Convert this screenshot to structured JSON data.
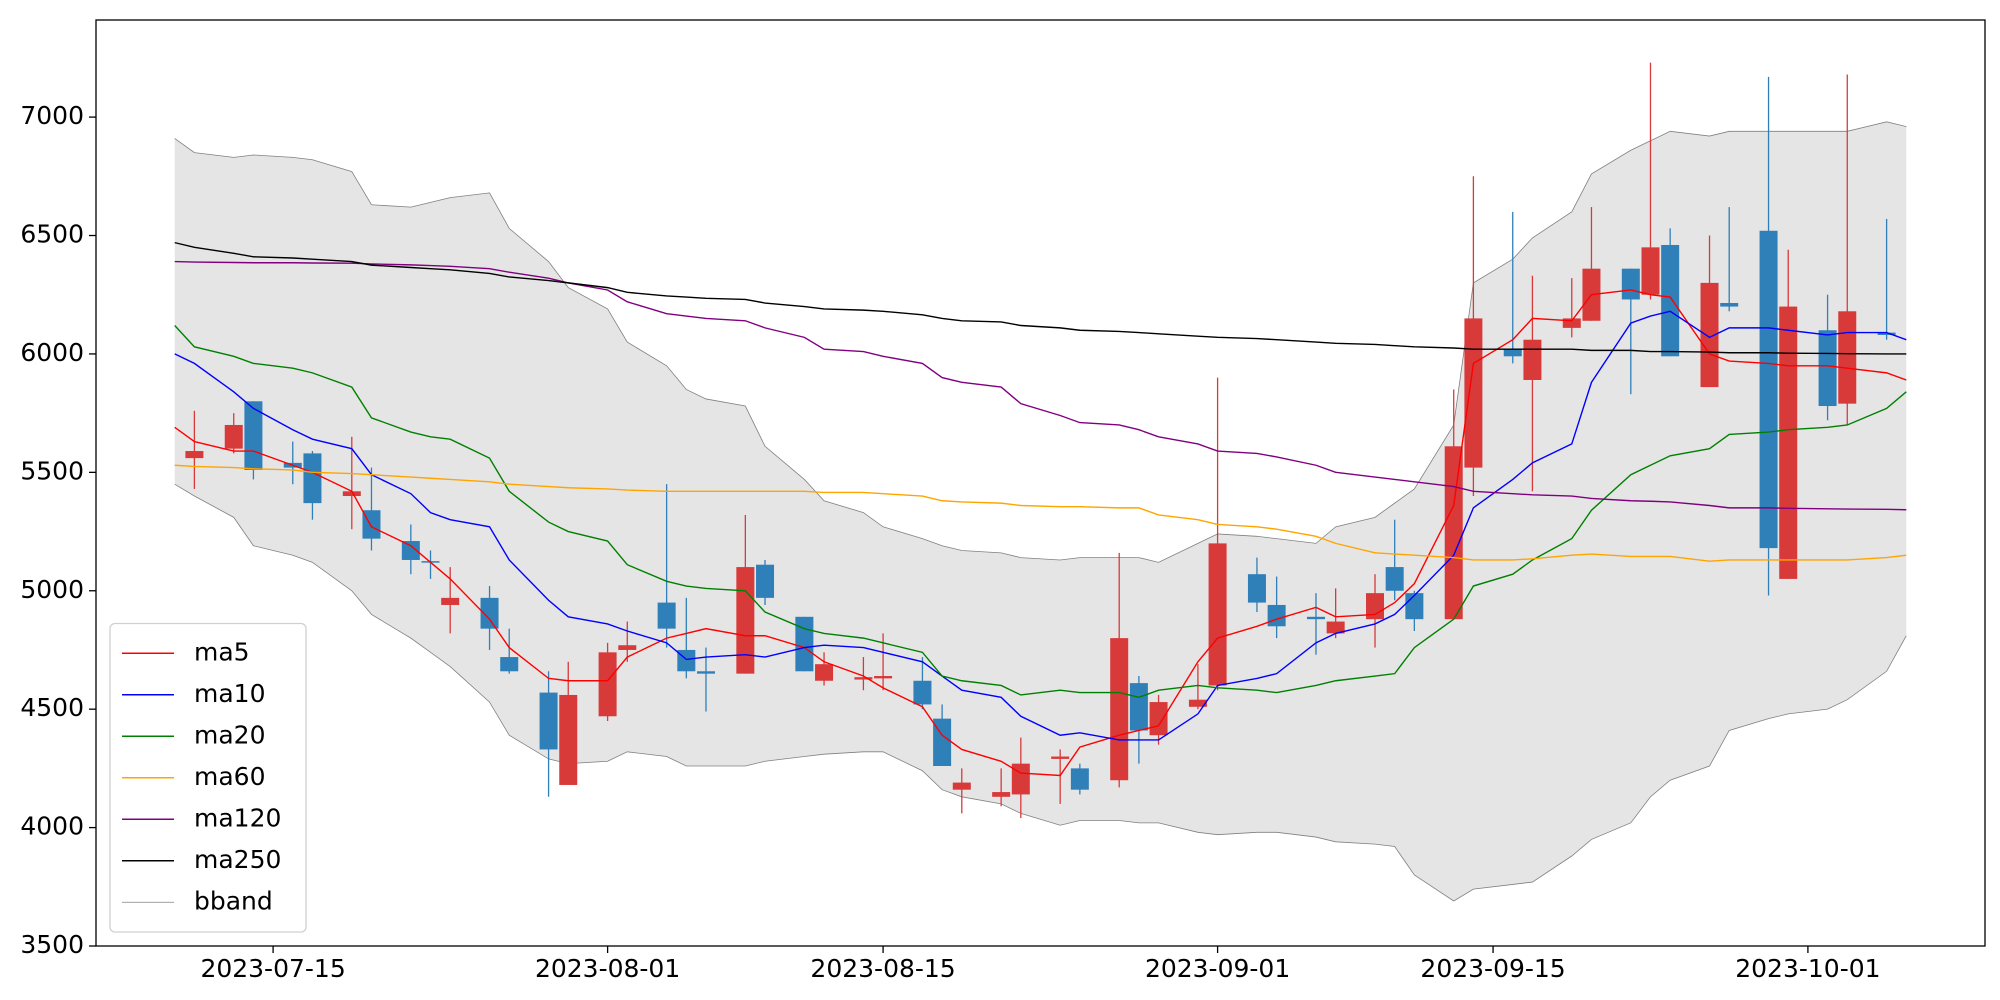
{
  "chart_data": {
    "type": "candlestick",
    "x": [
      "2023-07-10",
      "2023-07-11",
      "2023-07-13",
      "2023-07-14",
      "2023-07-16",
      "2023-07-17",
      "2023-07-19",
      "2023-07-20",
      "2023-07-22",
      "2023-07-23",
      "2023-07-24",
      "2023-07-26",
      "2023-07-27",
      "2023-07-29",
      "2023-07-30",
      "2023-08-01",
      "2023-08-02",
      "2023-08-04",
      "2023-08-05",
      "2023-08-06",
      "2023-08-08",
      "2023-08-09",
      "2023-08-11",
      "2023-08-12",
      "2023-08-14",
      "2023-08-15",
      "2023-08-17",
      "2023-08-18",
      "2023-08-19",
      "2023-08-21",
      "2023-08-22",
      "2023-08-24",
      "2023-08-25",
      "2023-08-27",
      "2023-08-28",
      "2023-08-29",
      "2023-08-31",
      "2023-09-01",
      "2023-09-03",
      "2023-09-04",
      "2023-09-06",
      "2023-09-07",
      "2023-09-09",
      "2023-09-10",
      "2023-09-11",
      "2023-09-13",
      "2023-09-14",
      "2023-09-16",
      "2023-09-17",
      "2023-09-19",
      "2023-09-20",
      "2023-09-22",
      "2023-09-23",
      "2023-09-24",
      "2023-09-26",
      "2023-09-27",
      "2023-09-29",
      "2023-09-30",
      "2023-10-02",
      "2023-10-03",
      "2023-10-05",
      "2023-10-06"
    ],
    "open": [
      null,
      5560,
      5600,
      5800,
      5540,
      5580,
      5400,
      5340,
      5210,
      5125,
      4940,
      4970,
      4720,
      4570,
      4180,
      4470,
      4750,
      4950,
      4750,
      4660,
      4650,
      5110,
      4890,
      4620,
      4625,
      4630,
      4620,
      4460,
      4160,
      4130,
      4140,
      4290,
      4250,
      4200,
      4610,
      4390,
      4510,
      4600,
      5070,
      4940,
      4890,
      4820,
      4880,
      5100,
      4990,
      4880,
      5520,
      6020,
      5890,
      6110,
      6140,
      6360,
      6250,
      6460,
      5860,
      6215,
      6520,
      5050,
      6100,
      5790,
      6090,
      null
    ],
    "high": [
      null,
      5760,
      5750,
      5800,
      5630,
      5590,
      5650,
      5520,
      5280,
      5170,
      5100,
      5020,
      4840,
      4660,
      4700,
      4780,
      4870,
      5450,
      4970,
      4760,
      5320,
      5130,
      4890,
      4740,
      4720,
      4820,
      4720,
      4520,
      4250,
      4250,
      4380,
      4330,
      4270,
      5160,
      4640,
      4560,
      4690,
      5900,
      5140,
      5060,
      4990,
      5010,
      5070,
      5300,
      5000,
      5850,
      6750,
      6600,
      6330,
      6320,
      6620,
      6360,
      7230,
      6530,
      6500,
      6620,
      7170,
      6440,
      6250,
      7180,
      6570,
      null
    ],
    "low": [
      null,
      5430,
      5580,
      5470,
      5450,
      5300,
      5260,
      5170,
      5070,
      5050,
      4820,
      4750,
      4650,
      4130,
      4180,
      4450,
      4700,
      4760,
      4630,
      4490,
      4650,
      4940,
      4660,
      4600,
      4580,
      4580,
      4500,
      4260,
      4060,
      4090,
      4040,
      4100,
      4140,
      4170,
      4270,
      4350,
      4500,
      4580,
      4910,
      4800,
      4730,
      4800,
      4760,
      4960,
      4830,
      4880,
      5400,
      5960,
      5420,
      6070,
      6140,
      5830,
      6230,
      5990,
      5860,
      6180,
      4980,
      5050,
      5720,
      5700,
      6060,
      null
    ],
    "close": [
      null,
      5590,
      5700,
      5510,
      5520,
      5370,
      5420,
      5220,
      5130,
      5120,
      4970,
      4840,
      4660,
      4330,
      4560,
      4740,
      4770,
      4840,
      4660,
      4650,
      5100,
      4970,
      4660,
      4690,
      4635,
      4640,
      4520,
      4260,
      4190,
      4150,
      4270,
      4300,
      4160,
      4800,
      4410,
      4530,
      4540,
      5200,
      4950,
      4850,
      4880,
      4870,
      4990,
      5000,
      4880,
      5610,
      6150,
      5990,
      6060,
      6150,
      6360,
      6230,
      6450,
      5990,
      6300,
      6200,
      5180,
      6200,
      5780,
      6180,
      6080,
      null
    ],
    "up_color": "#d83a3a",
    "down_color": "#2f7fb9",
    "series": [
      {
        "name": "ma5",
        "color": "#ff0000",
        "values": [
          5690,
          5630,
          5590,
          5590,
          5530,
          5500,
          5420,
          5270,
          5190,
          5120,
          5050,
          4880,
          4760,
          4630,
          4620,
          4620,
          4720,
          4800,
          4820,
          4840,
          4810,
          4810,
          4760,
          4700,
          4640,
          4590,
          4510,
          4390,
          4330,
          4280,
          4230,
          4220,
          4340,
          4390,
          4410,
          4430,
          4700,
          4800,
          4850,
          4880,
          4930,
          4890,
          4900,
          4950,
          5030,
          5360,
          5960,
          6060,
          6150,
          6140,
          6250,
          6270,
          6250,
          6240,
          6000,
          5970,
          5960,
          5950,
          5950,
          5940,
          5920,
          5890
        ]
      },
      {
        "name": "ma10",
        "color": "#0000ff",
        "values": [
          6000,
          5960,
          5840,
          5770,
          5680,
          5640,
          5600,
          5490,
          5410,
          5330,
          5300,
          5270,
          5130,
          4960,
          4890,
          4860,
          4830,
          4780,
          4710,
          4720,
          4730,
          4720,
          4760,
          4770,
          4760,
          4740,
          4700,
          4640,
          4580,
          4550,
          4470,
          4390,
          4400,
          4370,
          4370,
          4370,
          4480,
          4600,
          4630,
          4650,
          4780,
          4820,
          4860,
          4900,
          4980,
          5150,
          5350,
          5470,
          5540,
          5620,
          5880,
          6130,
          6160,
          6180,
          6070,
          6110,
          6110,
          6100,
          6080,
          6090,
          6090,
          6060
        ]
      },
      {
        "name": "ma20",
        "color": "#008000",
        "values": [
          6120,
          6030,
          5990,
          5960,
          5940,
          5920,
          5860,
          5730,
          5670,
          5650,
          5640,
          5560,
          5420,
          5290,
          5250,
          5210,
          5110,
          5040,
          5020,
          5010,
          5000,
          4910,
          4840,
          4820,
          4800,
          4780,
          4740,
          4640,
          4620,
          4600,
          4560,
          4580,
          4570,
          4570,
          4550,
          4580,
          4600,
          4590,
          4580,
          4570,
          4600,
          4620,
          4640,
          4650,
          4760,
          4880,
          5020,
          5070,
          5130,
          5220,
          5340,
          5490,
          5530,
          5570,
          5600,
          5660,
          5670,
          5680,
          5690,
          5700,
          5770,
          5840
        ]
      },
      {
        "name": "ma60",
        "color": "#ffa500",
        "values": [
          5530,
          5525,
          5520,
          5515,
          5510,
          5500,
          5495,
          5490,
          5480,
          5475,
          5470,
          5460,
          5450,
          5440,
          5435,
          5430,
          5425,
          5420,
          5420,
          5420,
          5420,
          5420,
          5420,
          5415,
          5415,
          5410,
          5400,
          5380,
          5375,
          5370,
          5360,
          5355,
          5355,
          5350,
          5350,
          5320,
          5300,
          5280,
          5270,
          5260,
          5230,
          5200,
          5160,
          5155,
          5150,
          5140,
          5130,
          5130,
          5135,
          5150,
          5155,
          5145,
          5145,
          5145,
          5125,
          5130,
          5130,
          5130,
          5130,
          5130,
          5140,
          5150
        ]
      },
      {
        "name": "ma120",
        "color": "#800080",
        "values": [
          6390,
          6388,
          6386,
          6385,
          6385,
          6384,
          6383,
          6380,
          6376,
          6373,
          6370,
          6360,
          6345,
          6320,
          6300,
          6270,
          6220,
          6170,
          6160,
          6150,
          6140,
          6110,
          6070,
          6020,
          6010,
          5990,
          5960,
          5900,
          5880,
          5860,
          5790,
          5740,
          5710,
          5700,
          5680,
          5650,
          5620,
          5590,
          5580,
          5565,
          5530,
          5500,
          5480,
          5470,
          5460,
          5440,
          5420,
          5410,
          5405,
          5400,
          5390,
          5380,
          5378,
          5375,
          5360,
          5350,
          5350,
          5348,
          5346,
          5345,
          5344,
          5342
        ]
      },
      {
        "name": "ma250",
        "color": "#000000",
        "values": [
          6470,
          6450,
          6425,
          6410,
          6405,
          6400,
          6390,
          6375,
          6365,
          6360,
          6355,
          6340,
          6325,
          6310,
          6300,
          6280,
          6260,
          6245,
          6240,
          6235,
          6230,
          6215,
          6200,
          6190,
          6185,
          6180,
          6165,
          6150,
          6140,
          6135,
          6120,
          6110,
          6100,
          6095,
          6090,
          6085,
          6075,
          6070,
          6065,
          6060,
          6050,
          6045,
          6040,
          6035,
          6030,
          6025,
          6020,
          6020,
          6020,
          6020,
          6015,
          6015,
          6010,
          6010,
          6008,
          6005,
          6005,
          6003,
          6002,
          6001,
          6000,
          6000
        ]
      },
      {
        "name": "bband",
        "color": "#808080",
        "fill": "#e5e5e5",
        "upper": [
          6910,
          6850,
          6830,
          6840,
          6830,
          6820,
          6770,
          6630,
          6620,
          6640,
          6660,
          6680,
          6530,
          6390,
          6280,
          6190,
          6050,
          5950,
          5850,
          5810,
          5780,
          5610,
          5470,
          5380,
          5330,
          5270,
          5220,
          5190,
          5170,
          5160,
          5140,
          5130,
          5140,
          5140,
          5140,
          5120,
          5200,
          5240,
          5230,
          5220,
          5200,
          5270,
          5310,
          5370,
          5430,
          5700,
          6300,
          6400,
          6490,
          6600,
          6760,
          6860,
          6900,
          6940,
          6920,
          6940,
          6940,
          6940,
          6940,
          6940,
          6980,
          6960
        ],
        "lower": [
          5450,
          5400,
          5310,
          5190,
          5150,
          5120,
          5000,
          4900,
          4800,
          4740,
          4680,
          4530,
          4390,
          4290,
          4270,
          4280,
          4320,
          4300,
          4260,
          4260,
          4260,
          4280,
          4300,
          4310,
          4320,
          4320,
          4240,
          4160,
          4130,
          4100,
          4060,
          4010,
          4030,
          4030,
          4020,
          4020,
          3980,
          3970,
          3980,
          3980,
          3960,
          3940,
          3930,
          3920,
          3800,
          3690,
          3740,
          3760,
          3770,
          3880,
          3950,
          4020,
          4130,
          4200,
          4260,
          4410,
          4460,
          4480,
          4500,
          4540,
          4660,
          4810
        ]
      }
    ],
    "xlim": [
      "2023-07-06",
      "2023-10-10"
    ],
    "xticks": [
      "2023-07-15",
      "2023-08-01",
      "2023-08-15",
      "2023-09-01",
      "2023-09-15",
      "2023-10-01"
    ],
    "ylim": [
      3500,
      7410
    ],
    "yticks": [
      3500,
      4000,
      4500,
      5000,
      5500,
      6000,
      6500,
      7000
    ],
    "legend": "lower left"
  }
}
